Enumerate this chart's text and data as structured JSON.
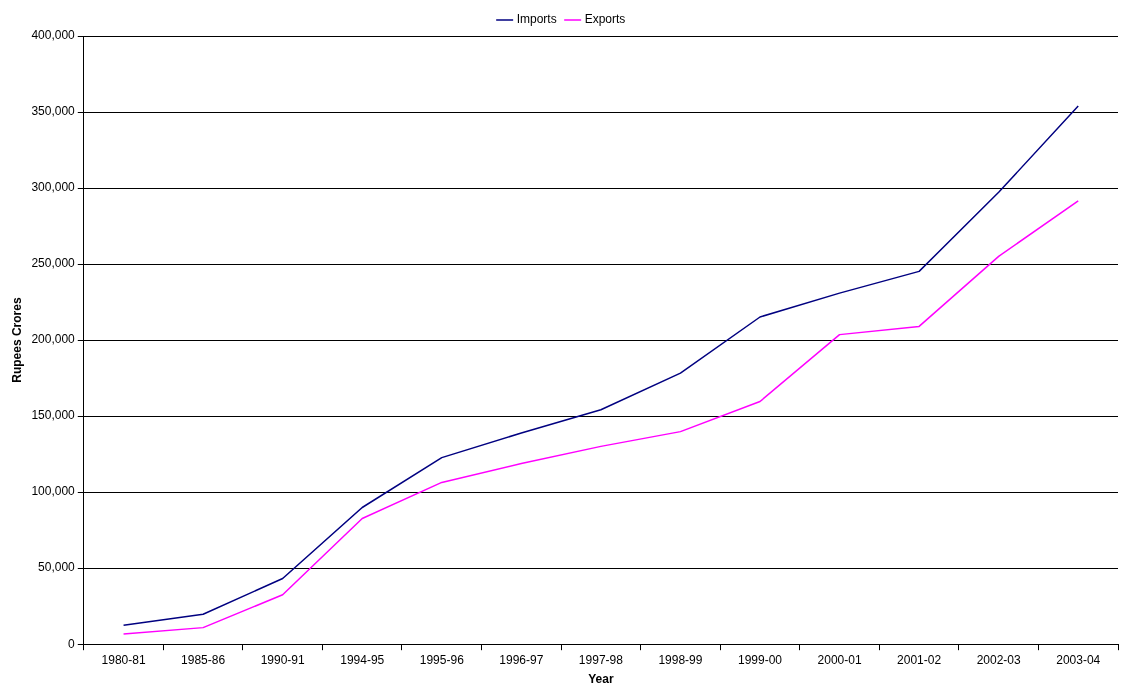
{
  "chart_data": {
    "type": "line",
    "xlabel": "Year",
    "ylabel": "Rupees Crores",
    "categories": [
      "1980-81",
      "1985-86",
      "1990-91",
      "1994-95",
      "1995-96",
      "1996-97",
      "1997-98",
      "1998-99",
      "1999-00",
      "2000-01",
      "2001-02",
      "2002-03",
      "2003-04"
    ],
    "series": [
      {
        "name": "Imports",
        "color": "#000080",
        "values": [
          12500,
          19700,
          43200,
          89900,
          122700,
          138900,
          154200,
          178300,
          215200,
          230900,
          245200,
          297200,
          354000
        ]
      },
      {
        "name": "Exports",
        "color": "#ff00ff",
        "values": [
          6700,
          10900,
          32500,
          82700,
          106400,
          118800,
          130100,
          139800,
          159600,
          203600,
          209000,
          255100,
          291600
        ]
      }
    ],
    "ylim": [
      0,
      400000
    ],
    "yticks": [
      0,
      {
        "value": 50000,
        "label": "50,000"
      },
      {
        "value": 100000,
        "label": "100,000"
      },
      {
        "value": 150000,
        "label": "150,000"
      },
      {
        "value": 200000,
        "label": "200,000"
      },
      {
        "value": 250000,
        "label": "250,000"
      },
      {
        "value": 300000,
        "label": "300,000"
      },
      {
        "value": 350000,
        "label": "350,000"
      },
      {
        "value": 400000,
        "label": "400,000"
      }
    ],
    "grid": "y",
    "legend": "top",
    "marker": "none",
    "line_style": "solid"
  }
}
